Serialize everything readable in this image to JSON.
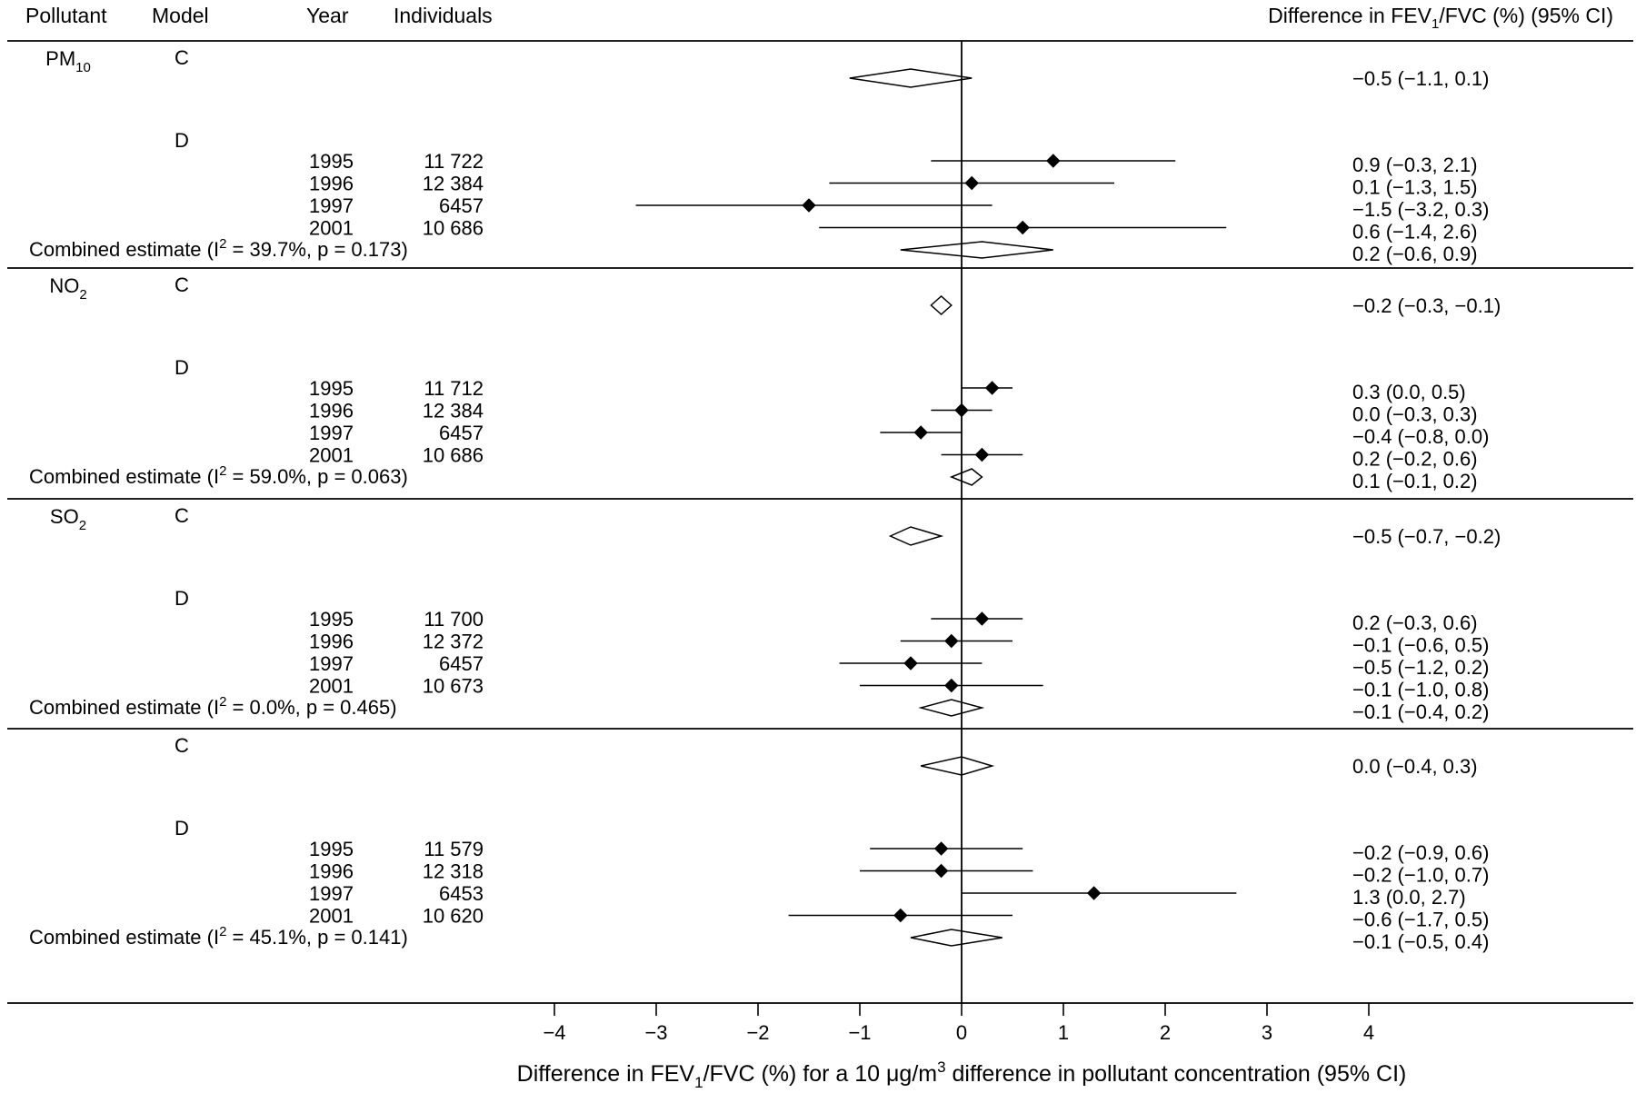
{
  "header": {
    "pollutant": "Pollutant",
    "model": "Model",
    "year": "Year",
    "individuals": "Individuals",
    "estimate": {
      "main": "Difference in FEV",
      "sub": "1",
      "rest": "/FVC (%) (95% CI)"
    }
  },
  "chart_data": {
    "type": "forest",
    "xlim": [
      -4,
      4
    ],
    "xticks": [
      -4,
      -3,
      -2,
      -1,
      0,
      1,
      2,
      3,
      4
    ],
    "xtick_labels": [
      "−4",
      "−3",
      "−2",
      "−1",
      "0",
      "1",
      "2",
      "3",
      "4"
    ],
    "xlabel": {
      "p1": "Difference in FEV",
      "sub": "1",
      "p2": "/FVC (%) for a 10 μg/m",
      "sup": "3",
      "p3": " difference in pollutant concentration (95% CI)"
    },
    "groups": [
      {
        "pollutant": {
          "main": "PM",
          "sub": "10"
        },
        "model_c": {
          "label": "C",
          "est": -0.5,
          "lo": -1.1,
          "hi": 0.1,
          "text": "−0.5 (−1.1, 0.1)"
        },
        "model_d": {
          "label": "D",
          "rows": [
            {
              "year": "1995",
              "n": "11 722",
              "est": 0.9,
              "lo": -0.3,
              "hi": 2.1,
              "text": "0.9 (−0.3, 2.1)"
            },
            {
              "year": "1996",
              "n": "12 384",
              "est": 0.1,
              "lo": -1.3,
              "hi": 1.5,
              "text": "0.1 (−1.3, 1.5)"
            },
            {
              "year": "1997",
              "n": "6457",
              "est": -1.5,
              "lo": -3.2,
              "hi": 0.3,
              "text": "−1.5 (−3.2, 0.3)"
            },
            {
              "year": "2001",
              "n": "10 686",
              "est": 0.6,
              "lo": -1.4,
              "hi": 2.6,
              "text": "0.6 (−1.4, 2.6)"
            }
          ],
          "combined": {
            "p1": "Combined estimate (I",
            "sup": "2",
            "p2": " = 39.7%, p = 0.173)",
            "est": 0.2,
            "lo": -0.6,
            "hi": 0.9,
            "text": "0.2 (−0.6, 0.9)"
          }
        }
      },
      {
        "pollutant": {
          "main": "NO",
          "sub": "2"
        },
        "model_c": {
          "label": "C",
          "est": -0.2,
          "lo": -0.3,
          "hi": -0.1,
          "text": "−0.2 (−0.3, −0.1)"
        },
        "model_d": {
          "label": "D",
          "rows": [
            {
              "year": "1995",
              "n": "11 712",
              "est": 0.3,
              "lo": 0.0,
              "hi": 0.5,
              "text": "0.3 (0.0, 0.5)"
            },
            {
              "year": "1996",
              "n": "12 384",
              "est": 0.0,
              "lo": -0.3,
              "hi": 0.3,
              "text": "0.0 (−0.3, 0.3)"
            },
            {
              "year": "1997",
              "n": "6457",
              "est": -0.4,
              "lo": -0.8,
              "hi": 0.0,
              "text": "−0.4 (−0.8, 0.0)"
            },
            {
              "year": "2001",
              "n": "10 686",
              "est": 0.2,
              "lo": -0.2,
              "hi": 0.6,
              "text": "0.2 (−0.2, 0.6)"
            }
          ],
          "combined": {
            "p1": "Combined estimate (I",
            "sup": "2",
            "p2": " = 59.0%, p = 0.063)",
            "est": 0.1,
            "lo": -0.1,
            "hi": 0.2,
            "text": "0.1 (−0.1, 0.2)"
          }
        }
      },
      {
        "pollutant": {
          "main": "SO",
          "sub": "2"
        },
        "model_c": {
          "label": "C",
          "est": -0.5,
          "lo": -0.7,
          "hi": -0.2,
          "text": "−0.5 (−0.7, −0.2)"
        },
        "model_d": {
          "label": "D",
          "rows": [
            {
              "year": "1995",
              "n": "11 700",
              "est": 0.2,
              "lo": -0.3,
              "hi": 0.6,
              "text": "0.2 (−0.3, 0.6)"
            },
            {
              "year": "1996",
              "n": "12 372",
              "est": -0.1,
              "lo": -0.6,
              "hi": 0.5,
              "text": "−0.1 (−0.6, 0.5)"
            },
            {
              "year": "1997",
              "n": "6457",
              "est": -0.5,
              "lo": -1.2,
              "hi": 0.2,
              "text": "−0.5 (−1.2, 0.2)"
            },
            {
              "year": "2001",
              "n": "10 673",
              "est": -0.1,
              "lo": -1.0,
              "hi": 0.8,
              "text": "−0.1 (−1.0, 0.8)"
            }
          ],
          "combined": {
            "p1": "Combined estimate (I",
            "sup": "2",
            "p2": " = 0.0%, p = 0.465)",
            "est": -0.1,
            "lo": -0.4,
            "hi": 0.2,
            "text": "−0.1 (−0.4, 0.2)"
          }
        }
      },
      {
        "pollutant": null,
        "model_c": {
          "label": "C",
          "est": 0.0,
          "lo": -0.4,
          "hi": 0.3,
          "text": "0.0 (−0.4, 0.3)"
        },
        "model_d": {
          "label": "D",
          "rows": [
            {
              "year": "1995",
              "n": "11 579",
              "est": -0.2,
              "lo": -0.9,
              "hi": 0.6,
              "text": "−0.2 (−0.9, 0.6)"
            },
            {
              "year": "1996",
              "n": "12 318",
              "est": -0.2,
              "lo": -1.0,
              "hi": 0.7,
              "text": "−0.2 (−1.0, 0.7)"
            },
            {
              "year": "1997",
              "n": "6453",
              "est": 1.3,
              "lo": 0.0,
              "hi": 2.7,
              "text": "1.3 (0.0, 2.7)"
            },
            {
              "year": "2001",
              "n": "10 620",
              "est": -0.6,
              "lo": -1.7,
              "hi": 0.5,
              "text": "−0.6 (−1.7, 0.5)"
            }
          ],
          "combined": {
            "p1": "Combined estimate (I",
            "sup": "2",
            "p2": " = 45.1%, p = 0.141)",
            "est": -0.1,
            "lo": -0.5,
            "hi": 0.4,
            "text": "−0.1 (−0.5, 0.4)"
          }
        }
      }
    ]
  }
}
